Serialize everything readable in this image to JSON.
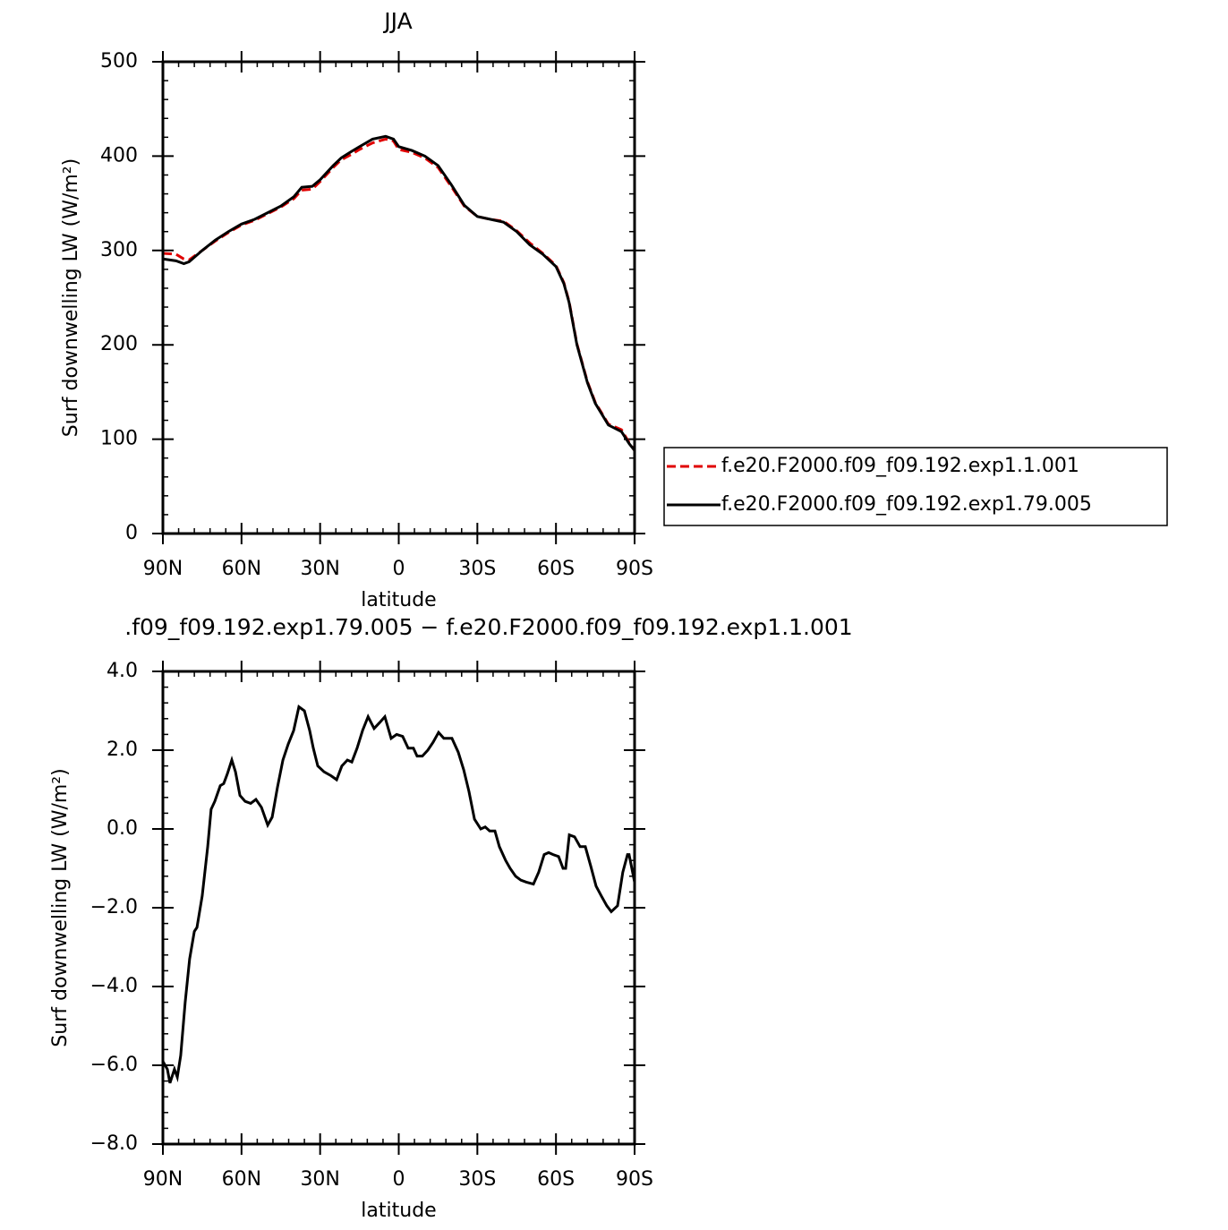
{
  "chart_data": [
    {
      "type": "line",
      "title": "JJA",
      "xlabel": "latitude",
      "ylabel": "Surf downwelling LW (W/m²)",
      "x": [
        90,
        85,
        82,
        80,
        75,
        70,
        65,
        60,
        55,
        50,
        45,
        40,
        37,
        33,
        30,
        25,
        22,
        18,
        15,
        10,
        5,
        2,
        0,
        -5,
        -10,
        -15,
        -20,
        -25,
        -30,
        -35,
        -40,
        -45,
        -50,
        -55,
        -60,
        -63,
        -65,
        -68,
        -72,
        -75,
        -80,
        -85,
        -88,
        -90
      ],
      "series": [
        {
          "name": "f.e20.F2000.f09_f09.192.exp1.1.001",
          "color": "#e00000",
          "dash": true,
          "values": [
            297,
            296,
            291,
            290,
            300,
            310,
            319,
            327,
            332,
            339,
            346,
            355,
            364,
            365,
            373,
            388,
            396,
            402,
            407,
            414,
            418,
            416,
            407,
            404,
            398,
            388,
            368,
            347,
            336,
            333,
            331,
            321,
            308,
            297,
            284,
            266,
            246,
            201,
            161,
            139,
            116,
            110,
            96,
            88
          ]
        },
        {
          "name": "f.e20.F2000.f09_f09.192.exp1.79.005",
          "color": "#000000",
          "dash": false,
          "values": [
            291,
            289,
            286,
            288,
            300,
            311,
            320,
            328,
            333,
            340,
            347,
            357,
            367,
            368,
            375,
            390,
            398,
            405,
            410,
            418,
            421,
            418,
            410,
            406,
            400,
            390,
            370,
            348,
            336,
            333,
            330,
            320,
            306,
            296,
            283,
            265,
            245,
            200,
            160,
            138,
            115,
            108,
            95,
            88
          ]
        }
      ],
      "xlim": [
        90,
        -90
      ],
      "xticks": [
        {
          "value": 90,
          "label": "90N"
        },
        {
          "value": 60,
          "label": "60N"
        },
        {
          "value": 30,
          "label": "30N"
        },
        0,
        {
          "value": -30,
          "label": "30S"
        },
        {
          "value": -60,
          "label": "60S"
        },
        {
          "value": -90,
          "label": "90S"
        }
      ],
      "ylim": [
        0,
        500
      ],
      "yticks": [
        0,
        100,
        200,
        300,
        400,
        500
      ],
      "legend": "right"
    },
    {
      "type": "line",
      "title": ".f09_f09.192.exp1.79.005 − f.e20.F2000.f09_f09.192.exp1.1.001",
      "xlabel": "latitude",
      "ylabel": "Surf downwelling LW (W/m²)",
      "x": [
        90,
        88.3,
        87.3,
        85.6,
        84.5,
        83.2,
        81.5,
        79.8,
        78.0,
        77.0,
        75.0,
        72.9,
        71.6,
        70.2,
        68.1,
        66.8,
        65.4,
        63.7,
        62.3,
        60.6,
        58.6,
        56.5,
        54.5,
        52.4,
        50.0,
        48.3,
        46.3,
        44.2,
        42.2,
        40.1,
        38.1,
        36.0,
        34.0,
        32.6,
        30.9,
        28.5,
        25.8,
        23.7,
        21.7,
        19.6,
        17.9,
        15.9,
        13.8,
        11.7,
        9.4,
        7.3,
        5.3,
        2.9,
        0.8,
        -1.5,
        -3.6,
        -5.6,
        -7.0,
        -9.0,
        -11.1,
        -13.1,
        -15.2,
        -17.2,
        -20.3,
        -22.7,
        -24.8,
        -26.8,
        -28.9,
        -31.3,
        -33.0,
        -34.7,
        -36.7,
        -38.4,
        -40.8,
        -42.5,
        -44.6,
        -46.6,
        -48.7,
        -51.4,
        -53.4,
        -55.5,
        -57.2,
        -58.9,
        -61.0,
        -62.7,
        -63.7,
        -65.1,
        -67.1,
        -69.2,
        -71.2,
        -73.3,
        -75.3,
        -77.3,
        -79.4,
        -81.1,
        -83.5,
        -85.5,
        -87.3,
        -87.9,
        -90
      ],
      "series": [
        {
          "name": null,
          "color": "#000000",
          "dash": false,
          "values": [
            -5.9,
            -6.1,
            -6.45,
            -6.1,
            -6.3,
            -5.75,
            -4.4,
            -3.3,
            -2.6,
            -2.5,
            -1.7,
            -0.45,
            0.5,
            0.7,
            1.1,
            1.15,
            1.4,
            1.75,
            1.45,
            0.85,
            0.7,
            0.65,
            0.75,
            0.55,
            0.1,
            0.3,
            1.05,
            1.75,
            2.15,
            2.5,
            3.1,
            3.0,
            2.5,
            2.05,
            1.6,
            1.45,
            1.35,
            1.25,
            1.6,
            1.75,
            1.7,
            2.05,
            2.5,
            2.85,
            2.55,
            2.7,
            2.85,
            2.3,
            2.4,
            2.35,
            2.05,
            2.05,
            1.85,
            1.85,
            2.0,
            2.2,
            2.45,
            2.3,
            2.3,
            1.95,
            1.5,
            0.95,
            0.25,
            0.0,
            0.05,
            -0.05,
            -0.05,
            -0.45,
            -0.8,
            -1.0,
            -1.2,
            -1.3,
            -1.35,
            -1.4,
            -1.1,
            -0.65,
            -0.6,
            -0.65,
            -0.7,
            -1.0,
            -1.0,
            -0.15,
            -0.2,
            -0.45,
            -0.45,
            -0.95,
            -1.45,
            -1.7,
            -1.95,
            -2.1,
            -1.95,
            -1.1,
            -0.65,
            -0.65,
            -1.35
          ]
        }
      ],
      "xlim": [
        90,
        -90
      ],
      "xticks": [
        {
          "value": 90,
          "label": "90N"
        },
        {
          "value": 60,
          "label": "60N"
        },
        {
          "value": 30,
          "label": "30N"
        },
        0,
        {
          "value": -30,
          "label": "30S"
        },
        {
          "value": -60,
          "label": "60S"
        },
        {
          "value": -90,
          "label": "90S"
        }
      ],
      "ylim": [
        -8,
        4
      ],
      "yticks": [
        {
          "value": -8,
          "label": "−8.0"
        },
        {
          "value": -6,
          "label": "−6.0"
        },
        {
          "value": -4,
          "label": "−4.0"
        },
        {
          "value": -2,
          "label": "−2.0"
        },
        {
          "value": 0,
          "label": "0.0"
        },
        {
          "value": 2,
          "label": "2.0"
        },
        {
          "value": 4,
          "label": "4.0"
        }
      ]
    }
  ]
}
